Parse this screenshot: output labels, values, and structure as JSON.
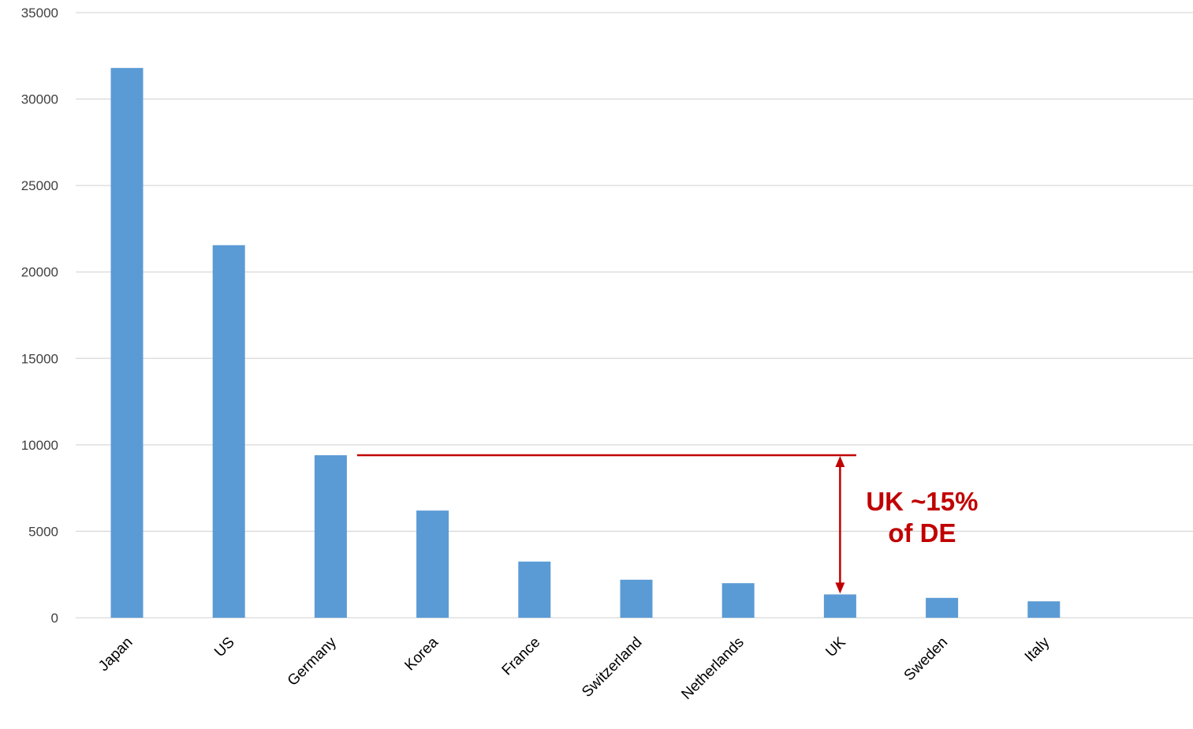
{
  "chart_data": {
    "type": "bar",
    "title": "",
    "xlabel": "",
    "ylabel": "",
    "categories": [
      "Japan",
      "US",
      "Germany",
      "Korea",
      "France",
      "Switzerland",
      "Netherlands",
      "UK",
      "Sweden",
      "Italy"
    ],
    "series": [
      {
        "values": [
          31800,
          21550,
          9400,
          6200,
          3250,
          2200,
          2000,
          1350,
          1150,
          950
        ]
      }
    ],
    "ylim": [
      0,
      35000
    ],
    "yticks": [
      "0",
      "5000",
      "10000",
      "15000",
      "20000",
      "25000",
      "30000",
      "35000"
    ],
    "grid": true,
    "legend": "none",
    "annotation": {
      "lines": [
        "UK ~15%",
        "of DE"
      ],
      "reference_from": "Germany",
      "reference_to": "UK"
    }
  },
  "colors": {
    "bar": "#5b9bd5",
    "grid": "#d9d9d9",
    "annotation": "#c00000"
  }
}
